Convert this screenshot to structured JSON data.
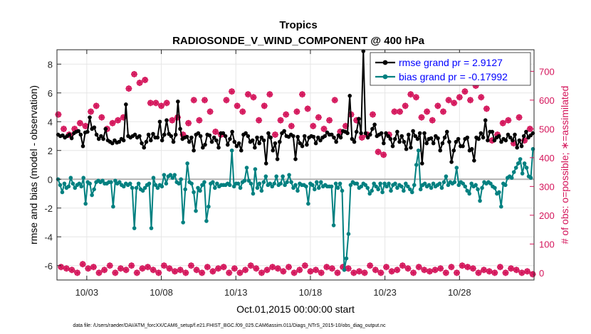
{
  "chart_data": {
    "type": "line",
    "title": "Tropics",
    "subtitle": "RADIOSONDE_V_WIND_COMPONENT @ 400 hPa",
    "xlabel": "Oct.01,2015 00:00:00 start",
    "ylabel_left": "rmse and bias (model - observation)",
    "ylabel_right": "# of obs: o=possible; ∗=assimilated",
    "footnote": "data file: /Users/raeder/DAI/ATM_forcXX/CAM6_setup/f.e21.FHIST_BGC.f09_025.CAM6assim.011/Diags_NTrS_2015-10/obs_diag_output.nc",
    "x_day_range": [
      1,
      33
    ],
    "x_ticks": [
      3,
      8,
      13,
      18,
      23,
      28
    ],
    "x_tick_labels": [
      "10/03",
      "10/08",
      "10/13",
      "10/18",
      "10/23",
      "10/28"
    ],
    "ylim_left": [
      -7,
      9
    ],
    "yticks_left": [
      -6,
      -4,
      -2,
      0,
      2,
      4,
      6,
      8
    ],
    "ylim_right": [
      -25,
      775
    ],
    "yticks_right": [
      0,
      100,
      200,
      300,
      400,
      500,
      600,
      700
    ],
    "grid": true,
    "zero_line": true,
    "legend_position": "top-right",
    "colors": {
      "rmse": "#000000",
      "bias": "#008080",
      "obs": "#d4145a",
      "zero_line": "#b3b3b3",
      "grid": "#e6e6e6",
      "legend_text": "#0000ff"
    },
    "series": [
      {
        "name": "rmse",
        "legend": "rmse grand pr = 2.9127",
        "axis": "left",
        "values": [
          3.1,
          3.0,
          3.05,
          2.9,
          3.0,
          3.1,
          2.85,
          3.2,
          3.3,
          3.35,
          3.1,
          2.3,
          3.25,
          3.3,
          4.3,
          3.5,
          3.6,
          3.1,
          2.8,
          3.0,
          2.8,
          3.5,
          2.7,
          2.6,
          2.5,
          2.7,
          2.55,
          2.6,
          2.8,
          2.7,
          5.2,
          3.0,
          2.9,
          3.0,
          3.1,
          2.9,
          3.0,
          2.5,
          2.2,
          2.6,
          3.1,
          2.7,
          3.15,
          2.9,
          2.9,
          4.0,
          2.7,
          3.1,
          4.1,
          3.15,
          3.0,
          2.6,
          3.1,
          5.4,
          3.5,
          2.8,
          2.9,
          2.95,
          2.6,
          2.9,
          2.0,
          3.1,
          3.2,
          3.0,
          2.2,
          2.4,
          3.1,
          3.05,
          2.6,
          2.9,
          2.7,
          2.2,
          3.2,
          3.2,
          3.0,
          2.4,
          2.8,
          3.3,
          2.6,
          2.3,
          2.5,
          2.0,
          3.1,
          3.2,
          3.0,
          2.6,
          2.7,
          2.2,
          2.9,
          2.5,
          2.9,
          2.7,
          1.1,
          3.2,
          2.9,
          2.0,
          2.5,
          1.4,
          2.6,
          3.2,
          3.35,
          3.0,
          2.95,
          3.1,
          3.0,
          1.4,
          2.95,
          2.5,
          2.3,
          3.0,
          2.4,
          2.9,
          3.0,
          2.95,
          2.5,
          2.9,
          2.7,
          2.9,
          3.0,
          3.25,
          3.1,
          3.1,
          2.9,
          2.6,
          3.05,
          2.9,
          3.35,
          3.3,
          3.2,
          5.8,
          2.8,
          2.6,
          3.3,
          4.2,
          3.2,
          8.9,
          3.2,
          2.9,
          3.1,
          3.5,
          3.8,
          3.0,
          3.1,
          3.2,
          2.5,
          3.2,
          3.0,
          2.8,
          2.3,
          2.8,
          3.3,
          2.6,
          3.0,
          2.6,
          2.1,
          3.1,
          2.2,
          3.35,
          3.0,
          2.8,
          3.2,
          1.1,
          3.2,
          2.5,
          2.8,
          2.85,
          2.5,
          3.0,
          2.85,
          2.0,
          2.5,
          2.9,
          3.3,
          2.6,
          1.2,
          2.0,
          2.6,
          2.8,
          2.3,
          2.3,
          2.8,
          2.9,
          2.0,
          2.1,
          1.3,
          2.9,
          2.8,
          3.2,
          2.9,
          4.1,
          2.7,
          3.3,
          3.3,
          2.7,
          2.9,
          3.0,
          2.6,
          2.8,
          2.7,
          3.1,
          2.9,
          2.7,
          3.1,
          2.2,
          2.7,
          2.3,
          3.0,
          3.3,
          2.9,
          3.05,
          3.2
        ]
      },
      {
        "name": "bias",
        "legend": "bias grand pr = -0.17992",
        "axis": "left",
        "values": [
          0.0,
          -0.4,
          -0.9,
          -0.3,
          -0.6,
          -0.5,
          0.1,
          -0.3,
          -0.6,
          -0.4,
          -0.3,
          -0.5,
          0.1,
          -1.7,
          -0.2,
          -0.3,
          -1.1,
          -0.7,
          -0.2,
          -0.1,
          -0.2,
          -0.1,
          -0.3,
          -0.3,
          -0.2,
          -0.2,
          -1.9,
          -0.1,
          -0.3,
          -0.2,
          -0.4,
          -0.5,
          -0.3,
          -0.4,
          -0.3,
          -0.6,
          -3.4,
          -0.6,
          -0.3,
          -0.7,
          -0.8,
          -0.6,
          -0.4,
          -0.3,
          -3.4,
          0.1,
          -0.4,
          -0.6,
          -0.4,
          -0.5,
          0.3,
          -0.3,
          0.2,
          0.3,
          0.1,
          0.3,
          -0.2,
          -0.3,
          0.0,
          -3.0,
          -0.7,
          1.1,
          -0.2,
          -0.3,
          -0.9,
          -2.2,
          -0.6,
          -0.8,
          -0.4,
          -0.2,
          -2.9,
          -1.9,
          -0.3,
          -0.2,
          -0.6,
          -0.3,
          -0.5,
          -0.4,
          -0.4,
          -0.4,
          -0.3,
          -0.4,
          2.0,
          -0.5,
          -0.3,
          -0.3,
          -0.6,
          -0.2,
          -0.1,
          0.8,
          -0.1,
          -0.3,
          -1.0,
          0.7,
          -0.6,
          -0.3,
          -0.8,
          -0.2,
          0.2,
          -0.4,
          -0.3,
          -0.5,
          -0.3,
          0.2,
          -0.4,
          -0.3,
          0.2,
          -0.4,
          -0.2,
          0.3,
          -0.2,
          -0.6,
          -0.4,
          -0.8,
          -0.3,
          -0.4,
          -0.4,
          -0.5,
          -1.7,
          -0.3,
          -0.4,
          -0.7,
          -0.2,
          -0.6,
          -0.2,
          -0.5,
          -0.4,
          -0.5,
          -0.5,
          -0.5,
          -3.2,
          -0.3,
          -0.6,
          -0.3,
          -0.8,
          -6.3,
          -5.5,
          -3.8,
          -0.4,
          -0.2,
          -0.3,
          -0.3,
          -0.6,
          -0.5,
          -0.3,
          -0.4,
          -0.6,
          -1.0,
          -0.8,
          -0.3,
          -0.5,
          -0.7,
          -0.3,
          -0.9,
          -0.3,
          -0.5,
          -0.3,
          -0.8,
          -0.4,
          -0.3,
          -0.6,
          -0.4,
          -0.5,
          -0.8,
          -0.3,
          -0.5,
          -0.7,
          -0.9,
          -0.4,
          1.0,
          2.0,
          -0.7,
          -0.4,
          -0.3,
          -0.5,
          -0.4,
          -0.6,
          -0.3,
          -0.5,
          -0.4,
          -0.3,
          -0.6,
          -0.2,
          0.2,
          -0.4,
          -0.2,
          -0.3,
          -0.2,
          0.8,
          -0.4,
          -0.2,
          -0.3,
          -0.5,
          -0.8,
          -1.0,
          -0.3,
          -0.5,
          -0.4,
          -0.7,
          -1.5,
          -0.6,
          -0.2,
          -0.3,
          -0.2,
          -0.3,
          -0.5,
          -0.6,
          -1.0,
          -0.9,
          -1.9,
          -0.3,
          -0.4,
          0.1,
          0.2,
          0.1,
          0.5,
          0.8,
          1.1,
          1.4,
          0.4,
          1.1,
          0.8,
          0.2,
          0.1,
          2.1
        ]
      }
    ],
    "obs_series": [
      {
        "name": "possible",
        "marker": "o",
        "axis": "right",
        "note": "coincides with assimilated counts (markers overlap)",
        "values": [
          550,
          20,
          500,
          15,
          480,
          10,
          500,
          0,
          520,
          30,
          510,
          15,
          560,
          20,
          580,
          0,
          540,
          10,
          500,
          25,
          520,
          0,
          530,
          15,
          540,
          10,
          640,
          25,
          690,
          0,
          660,
          15,
          670,
          20,
          590,
          10,
          590,
          0,
          580,
          25,
          590,
          15,
          530,
          5,
          540,
          10,
          480,
          0,
          520,
          25,
          600,
          10,
          530,
          0,
          600,
          20,
          560,
          5,
          490,
          15,
          480,
          20,
          600,
          0,
          630,
          15,
          580,
          0,
          560,
          10,
          620,
          25,
          610,
          15,
          530,
          0,
          580,
          10,
          620,
          20,
          480,
          15,
          530,
          5,
          550,
          20,
          510,
          0,
          560,
          10,
          620,
          25,
          570,
          5,
          510,
          10,
          540,
          0,
          500,
          20,
          530,
          15,
          600,
          0,
          490,
          20,
          510,
          15,
          550,
          0,
          530,
          5,
          470,
          0,
          480,
          25,
          550,
          10,
          420,
          0,
          410,
          20,
          480,
          5,
          560,
          10,
          560,
          25,
          580,
          15,
          620,
          0,
          610,
          20,
          540,
          10,
          560,
          5,
          530,
          10,
          580,
          15,
          560,
          0,
          600,
          20,
          590,
          0,
          610,
          25,
          630,
          20,
          600,
          15,
          650,
          0,
          610,
          10,
          570,
          5,
          460,
          0,
          480,
          20,
          520,
          0,
          530,
          15,
          450,
          10,
          540,
          0,
          460,
          5,
          500,
          -5
        ]
      },
      {
        "name": "assimilated",
        "marker": "*",
        "axis": "right",
        "values": [
          550,
          20,
          500,
          15,
          480,
          10,
          500,
          0,
          520,
          30,
          510,
          15,
          560,
          20,
          580,
          0,
          540,
          10,
          500,
          25,
          520,
          0,
          530,
          15,
          540,
          10,
          640,
          25,
          690,
          0,
          660,
          15,
          670,
          20,
          590,
          10,
          590,
          0,
          580,
          25,
          590,
          15,
          530,
          5,
          540,
          10,
          480,
          0,
          520,
          25,
          600,
          10,
          530,
          0,
          600,
          20,
          560,
          5,
          490,
          15,
          480,
          20,
          600,
          0,
          630,
          15,
          580,
          0,
          560,
          10,
          620,
          25,
          610,
          15,
          530,
          0,
          580,
          10,
          620,
          20,
          480,
          15,
          530,
          5,
          550,
          20,
          510,
          0,
          560,
          10,
          620,
          25,
          570,
          5,
          510,
          10,
          540,
          0,
          500,
          20,
          530,
          15,
          600,
          0,
          490,
          20,
          510,
          15,
          550,
          0,
          530,
          5,
          470,
          0,
          480,
          25,
          550,
          10,
          420,
          0,
          410,
          20,
          480,
          5,
          560,
          10,
          560,
          25,
          580,
          15,
          620,
          0,
          610,
          20,
          540,
          10,
          560,
          5,
          530,
          10,
          580,
          15,
          560,
          0,
          600,
          20,
          590,
          0,
          610,
          25,
          630,
          20,
          600,
          15,
          650,
          0,
          610,
          10,
          570,
          5,
          460,
          0,
          480,
          20,
          520,
          0,
          530,
          15,
          450,
          10,
          540,
          0,
          460,
          5,
          500,
          -5
        ]
      }
    ]
  }
}
